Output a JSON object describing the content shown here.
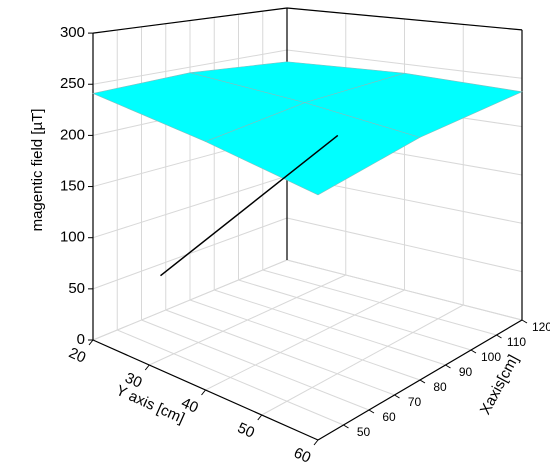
{
  "chart_data": {
    "type": "surface3d",
    "zlabel": "magentic field [µT]",
    "ylabel": "Y axis [cm]",
    "xlabel": "Xaxis[cm]",
    "xlim": [
      40,
      120
    ],
    "xticks": [
      50,
      60,
      70,
      80,
      90,
      100,
      110,
      120
    ],
    "ylim": [
      20,
      60
    ],
    "yticks": [
      20,
      30,
      40,
      50,
      60
    ],
    "zlim": [
      0,
      300
    ],
    "zticks": [
      0,
      50,
      100,
      150,
      200,
      250,
      300
    ],
    "grid": true,
    "surface": {
      "color": "#00ffff",
      "x": [
        40,
        80,
        120
      ],
      "y": [
        20,
        40,
        60
      ],
      "z": [
        [
          241,
          244,
          236
        ],
        [
          242,
          246,
          240
        ],
        [
          238,
          243,
          236
        ]
      ]
    },
    "line": {
      "color": "#000000",
      "x": [
        40,
        112
      ],
      "y": [
        32,
        32
      ],
      "z": [
        92,
        170
      ]
    }
  }
}
